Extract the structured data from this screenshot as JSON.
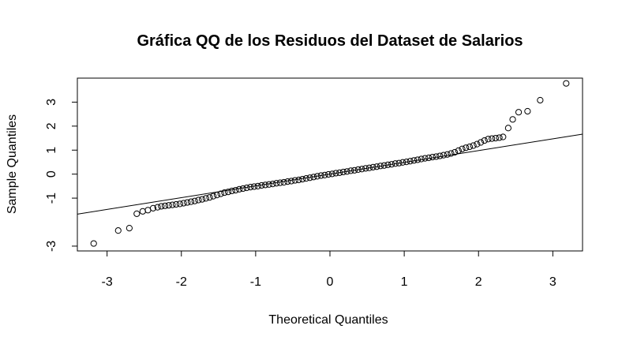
{
  "chart_data": {
    "type": "scatter",
    "title": "Gráfica QQ de los Residuos del Dataset de Salarios",
    "xlabel": "Theoretical Quantiles",
    "ylabel": "Sample Quantiles",
    "xlim": [
      -3.4,
      3.4
    ],
    "ylim": [
      -3.2,
      4.0
    ],
    "x_ticks": [
      -3,
      -2,
      -1,
      0,
      1,
      2,
      3
    ],
    "y_ticks": [
      -3,
      -1,
      0,
      1,
      2,
      3
    ],
    "y_tick_labels": [
      "-3",
      "-1",
      "0",
      "1",
      "2",
      "3"
    ],
    "grid": false,
    "reference_line": {
      "slope": 0.49,
      "intercept": 0.0
    },
    "point_color": "#000000",
    "line_color": "#000000",
    "points": [
      [
        -3.18,
        -2.89
      ],
      [
        -2.85,
        -2.35
      ],
      [
        -2.7,
        -2.25
      ],
      [
        -2.6,
        -1.65
      ],
      [
        -2.52,
        -1.55
      ],
      [
        -2.45,
        -1.5
      ],
      [
        -2.38,
        -1.42
      ],
      [
        -2.32,
        -1.38
      ],
      [
        -2.27,
        -1.34
      ],
      [
        -2.22,
        -1.32
      ],
      [
        -2.17,
        -1.3
      ],
      [
        -2.12,
        -1.28
      ],
      [
        -2.07,
        -1.26
      ],
      [
        -2.02,
        -1.24
      ],
      [
        -1.97,
        -1.21
      ],
      [
        -1.92,
        -1.18
      ],
      [
        -1.87,
        -1.15
      ],
      [
        -1.82,
        -1.12
      ],
      [
        -1.77,
        -1.08
      ],
      [
        -1.72,
        -1.05
      ],
      [
        -1.67,
        -1.01
      ],
      [
        -1.62,
        -0.97
      ],
      [
        -1.57,
        -0.92
      ],
      [
        -1.52,
        -0.87
      ],
      [
        -1.47,
        -0.82
      ],
      [
        -1.42,
        -0.77
      ],
      [
        -1.37,
        -0.74
      ],
      [
        -1.32,
        -0.7
      ],
      [
        -1.27,
        -0.67
      ],
      [
        -1.22,
        -0.63
      ],
      [
        -1.17,
        -0.6
      ],
      [
        -1.12,
        -0.57
      ],
      [
        -1.07,
        -0.54
      ],
      [
        -1.02,
        -0.52
      ],
      [
        -0.97,
        -0.5
      ],
      [
        -0.92,
        -0.47
      ],
      [
        -0.87,
        -0.45
      ],
      [
        -0.82,
        -0.43
      ],
      [
        -0.77,
        -0.41
      ],
      [
        -0.72,
        -0.38
      ],
      [
        -0.67,
        -0.36
      ],
      [
        -0.62,
        -0.34
      ],
      [
        -0.57,
        -0.31
      ],
      [
        -0.52,
        -0.29
      ],
      [
        -0.47,
        -0.26
      ],
      [
        -0.42,
        -0.24
      ],
      [
        -0.37,
        -0.21
      ],
      [
        -0.32,
        -0.18
      ],
      [
        -0.27,
        -0.15
      ],
      [
        -0.22,
        -0.12
      ],
      [
        -0.17,
        -0.09
      ],
      [
        -0.12,
        -0.06
      ],
      [
        -0.07,
        -0.04
      ],
      [
        -0.02,
        -0.01
      ],
      [
        0.03,
        0.01
      ],
      [
        0.08,
        0.04
      ],
      [
        0.13,
        0.06
      ],
      [
        0.18,
        0.09
      ],
      [
        0.23,
        0.11
      ],
      [
        0.28,
        0.14
      ],
      [
        0.33,
        0.16
      ],
      [
        0.38,
        0.19
      ],
      [
        0.43,
        0.21
      ],
      [
        0.48,
        0.24
      ],
      [
        0.53,
        0.26
      ],
      [
        0.58,
        0.29
      ],
      [
        0.63,
        0.31
      ],
      [
        0.68,
        0.34
      ],
      [
        0.73,
        0.36
      ],
      [
        0.78,
        0.39
      ],
      [
        0.83,
        0.41
      ],
      [
        0.88,
        0.44
      ],
      [
        0.93,
        0.46
      ],
      [
        0.98,
        0.49
      ],
      [
        1.03,
        0.51
      ],
      [
        1.08,
        0.54
      ],
      [
        1.13,
        0.57
      ],
      [
        1.18,
        0.6
      ],
      [
        1.23,
        0.63
      ],
      [
        1.28,
        0.66
      ],
      [
        1.33,
        0.68
      ],
      [
        1.38,
        0.71
      ],
      [
        1.43,
        0.73
      ],
      [
        1.48,
        0.76
      ],
      [
        1.53,
        0.79
      ],
      [
        1.58,
        0.82
      ],
      [
        1.63,
        0.86
      ],
      [
        1.68,
        0.91
      ],
      [
        1.73,
        0.98
      ],
      [
        1.78,
        1.05
      ],
      [
        1.83,
        1.1
      ],
      [
        1.88,
        1.14
      ],
      [
        1.93,
        1.19
      ],
      [
        1.98,
        1.25
      ],
      [
        2.03,
        1.32
      ],
      [
        2.08,
        1.4
      ],
      [
        2.13,
        1.46
      ],
      [
        2.18,
        1.48
      ],
      [
        2.23,
        1.5
      ],
      [
        2.28,
        1.52
      ],
      [
        2.33,
        1.55
      ],
      [
        2.4,
        1.92
      ],
      [
        2.46,
        2.28
      ],
      [
        2.54,
        2.58
      ],
      [
        2.66,
        2.62
      ],
      [
        2.83,
        3.08
      ],
      [
        3.18,
        3.78
      ]
    ]
  }
}
